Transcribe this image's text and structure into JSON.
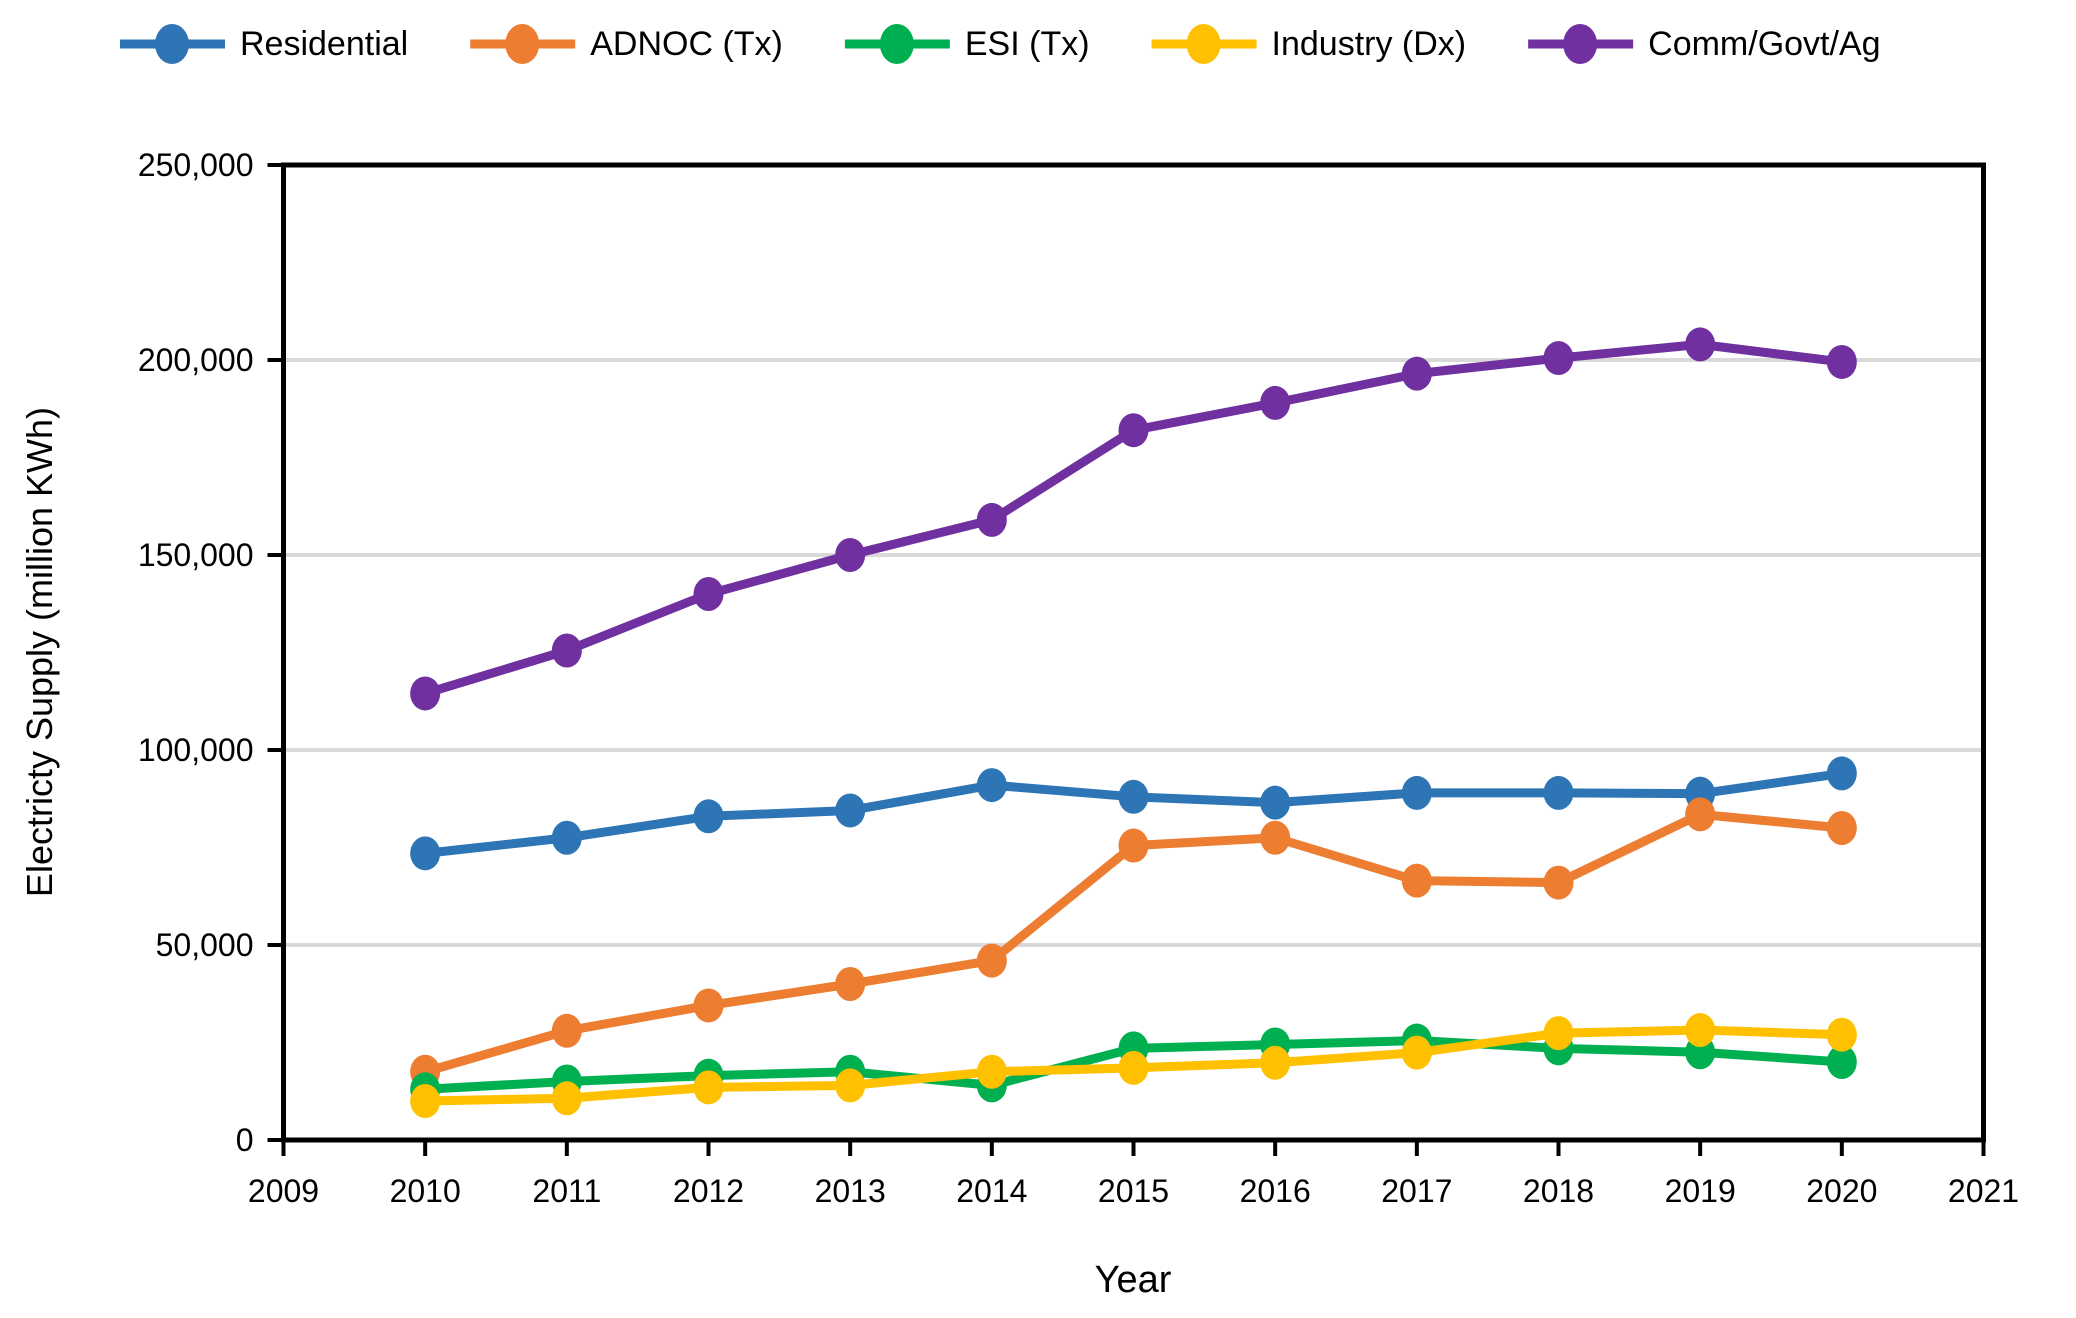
{
  "page": {
    "background": "#ffffff",
    "axis_color": "#000000",
    "text_color": "#000000"
  },
  "chart_data": {
    "type": "line",
    "title": "",
    "xlabel": "Year",
    "ylabel": "Electricty Supply (million KWh)",
    "x": [
      2010,
      2011,
      2012,
      2013,
      2014,
      2015,
      2016,
      2017,
      2018,
      2019,
      2020
    ],
    "series": [
      {
        "name": "Residential",
        "color": "#2E75B6",
        "values": [
          73500,
          77500,
          83000,
          84500,
          91000,
          88000,
          86500,
          89000,
          89000,
          88800,
          94000
        ]
      },
      {
        "name": "ADNOC (Tx)",
        "color": "#ED7D31",
        "values": [
          17500,
          28000,
          34500,
          40000,
          46000,
          75500,
          77500,
          66500,
          66000,
          83500,
          80000
        ]
      },
      {
        "name": "ESI (Tx)",
        "color": "#00B050",
        "values": [
          13000,
          15000,
          16500,
          17500,
          14000,
          23500,
          24500,
          25500,
          23500,
          22500,
          20000
        ]
      },
      {
        "name": "Industry (Dx)",
        "color": "#FFC000",
        "values": [
          10000,
          10700,
          13500,
          14000,
          17500,
          18500,
          19800,
          22400,
          27400,
          28200,
          27000
        ]
      },
      {
        "name": "Comm/Govt/Ag",
        "color": "#7030A0",
        "values": [
          114500,
          125500,
          140000,
          150000,
          159000,
          182000,
          189000,
          196500,
          200500,
          204000,
          199500
        ]
      }
    ],
    "xlim": [
      2009,
      2021
    ],
    "ylim": [
      0,
      250000
    ],
    "xticks": [
      2009,
      2010,
      2011,
      2012,
      2013,
      2014,
      2015,
      2016,
      2017,
      2018,
      2019,
      2020,
      2021
    ],
    "xtick_labels": [
      "2009",
      "2010",
      "2011",
      "2012",
      "2013",
      "2014",
      "2015",
      "2016",
      "2017",
      "2018",
      "2019",
      "2020",
      "2021"
    ],
    "yticks": [
      0,
      50000,
      100000,
      150000,
      200000,
      250000
    ],
    "ytick_labels": [
      "0",
      "50,000",
      "100,000",
      "150,000",
      "200,000",
      "250,000"
    ],
    "grid": true,
    "gridline_color": "#D9D9D9",
    "legend_position": "top"
  },
  "legend": {
    "items": [
      {
        "label": "Residential",
        "color": "#2E75B6"
      },
      {
        "label": "ADNOC (Tx)",
        "color": "#ED7D31"
      },
      {
        "label": "ESI (Tx)",
        "color": "#00B050"
      },
      {
        "label": "Industry (Dx)",
        "color": "#FFC000"
      },
      {
        "label": "Comm/Govt/Ag",
        "color": "#7030A0"
      }
    ]
  }
}
